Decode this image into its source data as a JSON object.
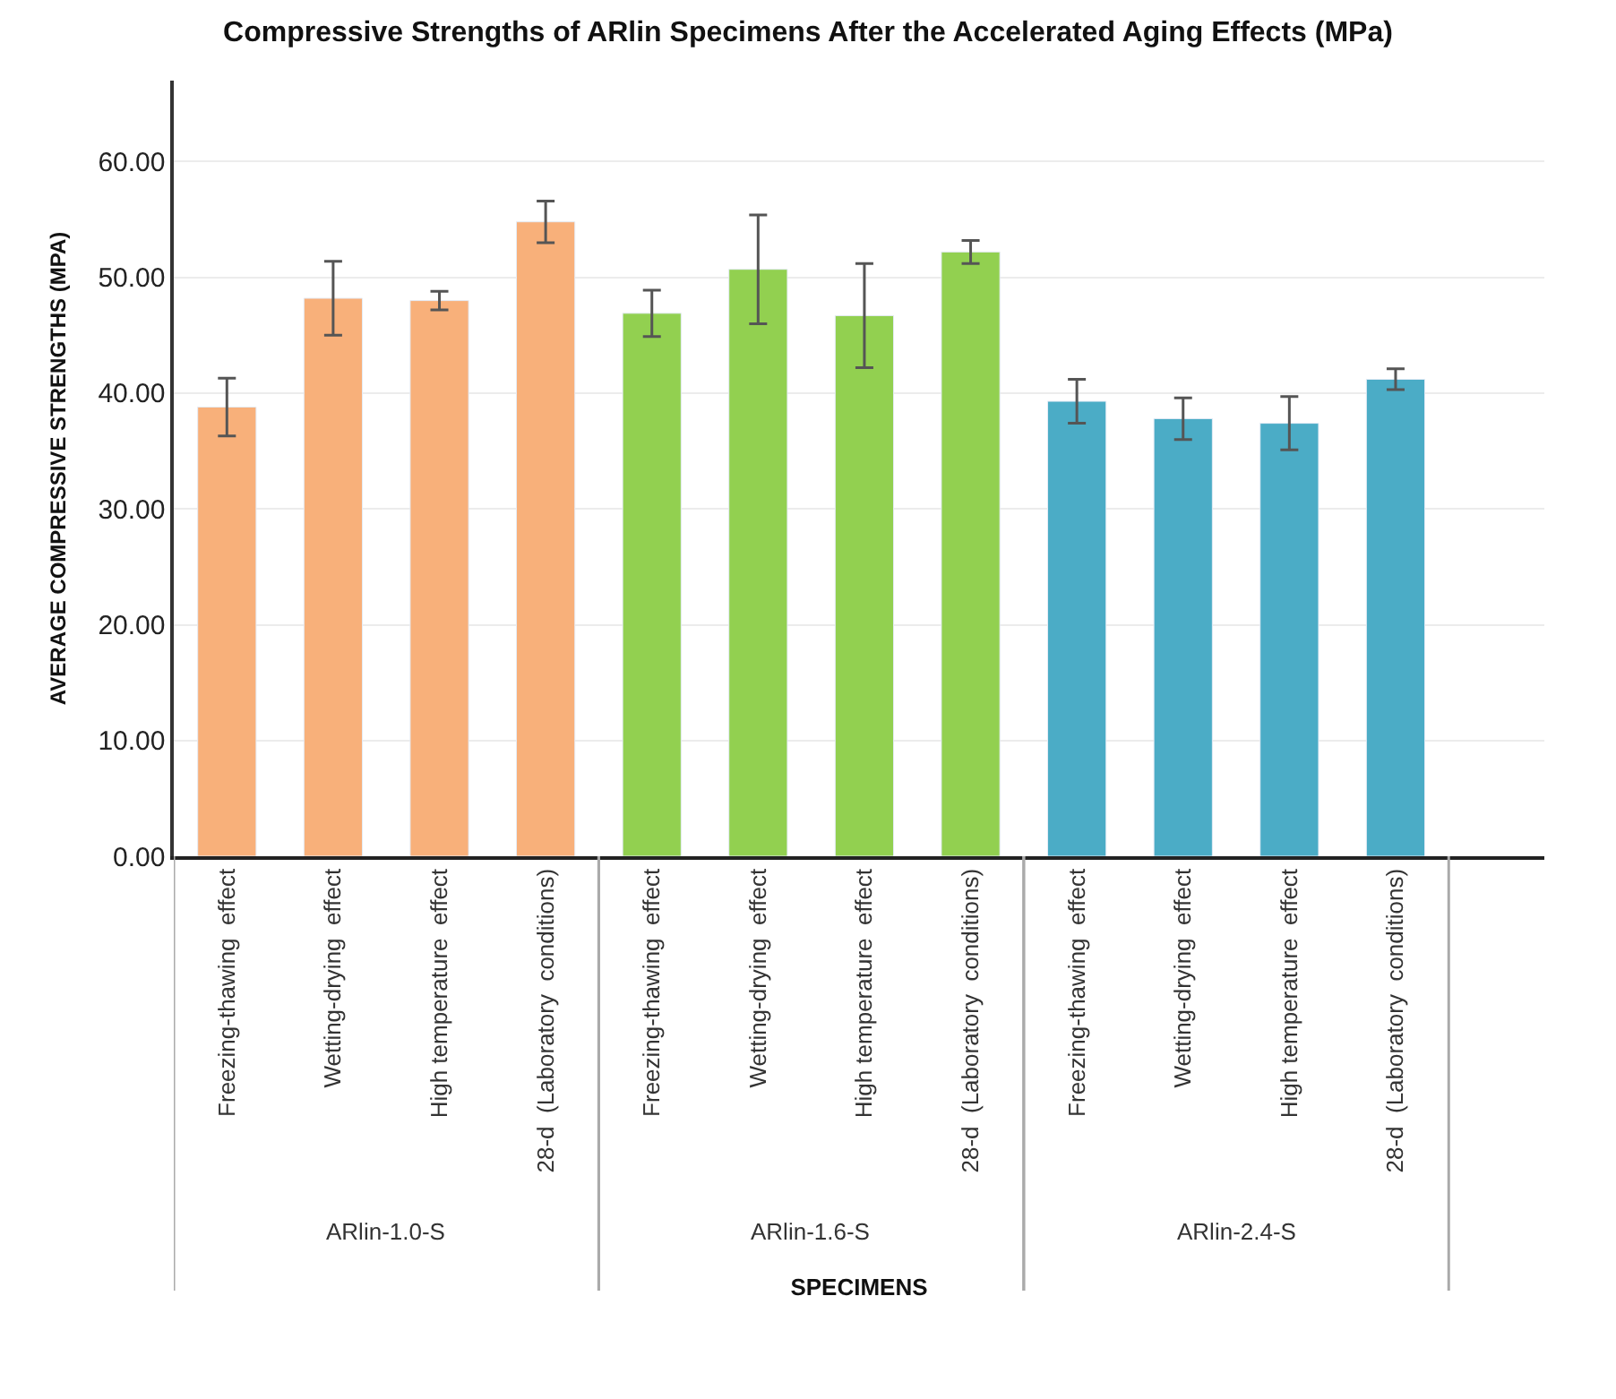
{
  "chart_data": {
    "type": "bar",
    "title": "Compressive Strengths of ARlin Specimens After the Accelerated Aging Effects (MPa)",
    "xlabel": "SPECIMENS",
    "ylabel": "AVERAGE COMPRESSIVE STRENGTHS (MPA)",
    "categories": [
      "Freezing-thawing  effect",
      "Wetting-drying  effect",
      "High temperature  effect",
      "28-d  (Laboratory  conditions)",
      "Freezing-thawing  effect",
      "Wetting-drying  effect",
      "High temperature  effect",
      "28-d  (Laboratory  conditions)",
      "Freezing-thawing  effect",
      "Wetting-drying  effect",
      "High temperature  effect",
      "28-d  (Laboratory  conditions)"
    ],
    "values": [
      38.8,
      48.2,
      48.0,
      54.8,
      46.9,
      50.7,
      46.7,
      52.2,
      39.3,
      37.8,
      37.4,
      41.2
    ],
    "errors": [
      2.5,
      3.2,
      0.8,
      1.8,
      2.0,
      4.7,
      4.5,
      1.0,
      1.9,
      1.8,
      2.3,
      0.9
    ],
    "colors": [
      "#f8b07a",
      "#f8b07a",
      "#f8b07a",
      "#f8b07a",
      "#92d050",
      "#92d050",
      "#92d050",
      "#92d050",
      "#4bacc6",
      "#4bacc6",
      "#4bacc6",
      "#4bacc6"
    ],
    "annotations": [
      "ARlin-1.0-S",
      "ARlin-1.6-S",
      "ARlin-2.4-S"
    ],
    "ylim": [
      0,
      67
    ],
    "yticks": [
      {
        "value": 0,
        "label": "0.00"
      },
      {
        "value": 10,
        "label": "10.00"
      },
      {
        "value": 20,
        "label": "20.00"
      },
      {
        "value": 30,
        "label": "30.00"
      },
      {
        "value": 40,
        "label": "40.00"
      },
      {
        "value": 50,
        "label": "50.00"
      },
      {
        "value": 60,
        "label": "60.00"
      }
    ],
    "grid": "y"
  }
}
